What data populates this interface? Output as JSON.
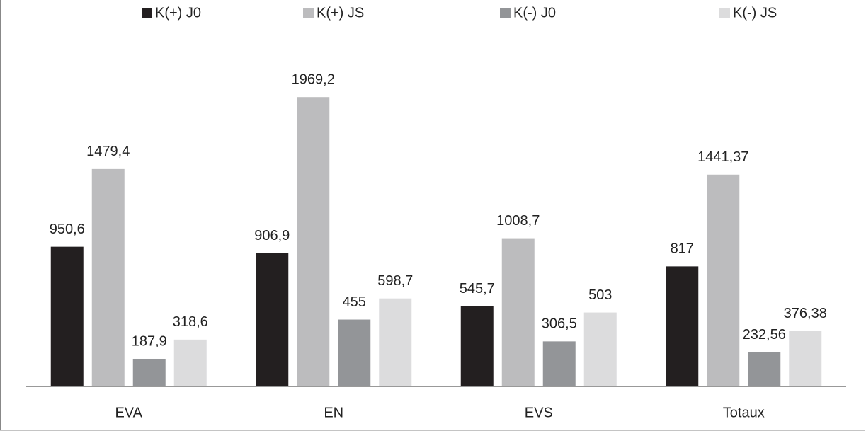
{
  "chart_data": {
    "type": "bar",
    "categories": [
      "EVA",
      "EN",
      "EVS",
      "Totaux"
    ],
    "series": [
      {
        "name": "K(+) J0",
        "color": "#231f20",
        "values": [
          950.6,
          906.9,
          545.7,
          817
        ],
        "value_labels": [
          "950,6",
          "906,9",
          "545,7",
          "817"
        ]
      },
      {
        "name": "K(+) JS",
        "color": "#bcbcbe",
        "values": [
          1479.4,
          1969.2,
          1008.7,
          1441.37
        ],
        "value_labels": [
          "1479,4",
          "1969,2",
          "1008,7",
          "1441,37"
        ]
      },
      {
        "name": "K(-) J0",
        "color": "#939598",
        "values": [
          187.9,
          455,
          306.5,
          232.56
        ],
        "value_labels": [
          "187,9",
          "455",
          "306,5",
          "232,56"
        ]
      },
      {
        "name": "K(-) JS",
        "color": "#dcdcdd",
        "values": [
          318.6,
          598.7,
          503,
          376.38
        ],
        "value_labels": [
          "318,6",
          "598,7",
          "503",
          "376,38"
        ]
      }
    ],
    "ylim": [
      0,
      2500
    ],
    "legend": "top"
  }
}
